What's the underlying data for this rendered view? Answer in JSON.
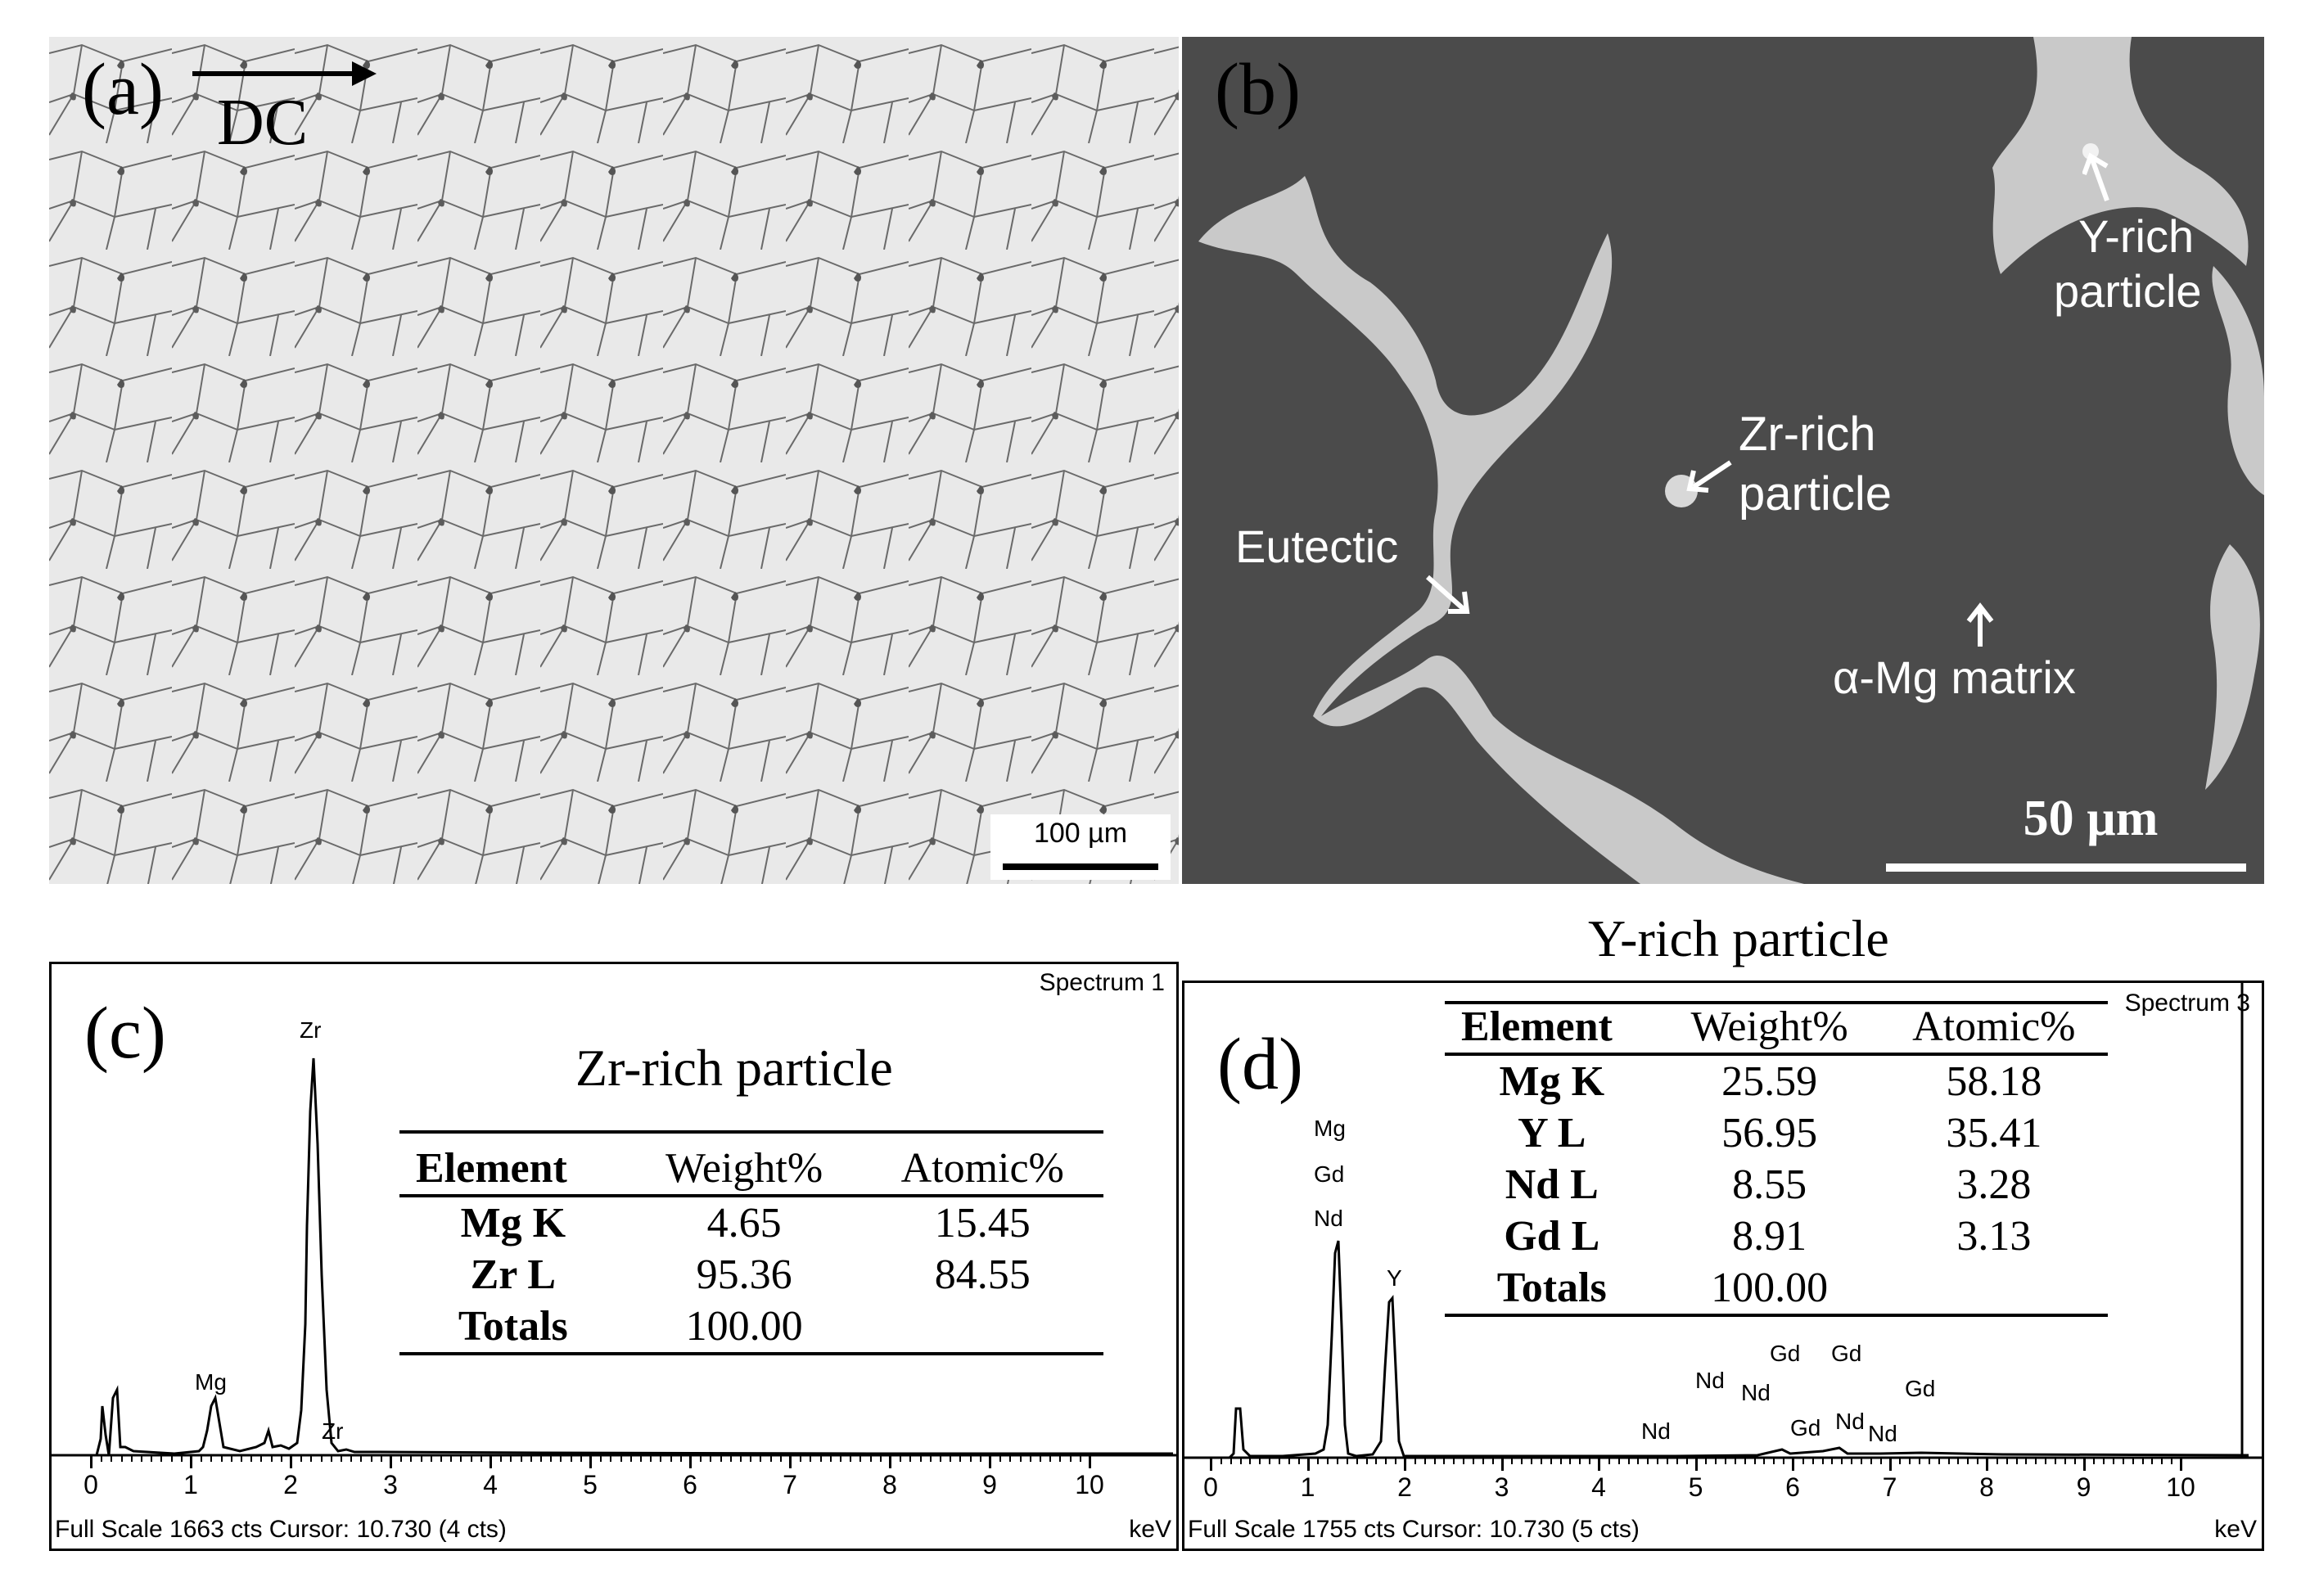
{
  "panel_a": {
    "label": "(a)",
    "direction_label": "DC",
    "scalebar_label": "100 µm"
  },
  "panel_b": {
    "label": "(b)",
    "annotations": {
      "y_rich_line1": "Y-rich",
      "y_rich_line2": "particle",
      "zr_rich_line1": "Zr-rich",
      "zr_rich_line2": "particle",
      "eutectic": "Eutectic",
      "matrix": "α-Mg matrix"
    },
    "scalebar_label": "50 µm"
  },
  "panel_c": {
    "label": "(c)",
    "spectrum_name": "Spectrum 1",
    "table_title": "Zr-rich particle",
    "table": {
      "headers": [
        "Element",
        "Weight%",
        "Atomic%"
      ],
      "rows": [
        [
          "Mg K",
          "4.65",
          "15.45"
        ],
        [
          "Zr L",
          "95.36",
          "84.55"
        ],
        [
          "Totals",
          "100.00",
          ""
        ]
      ]
    },
    "peak_labels": [
      "Zr",
      "Mg",
      "Zr"
    ],
    "axis_ticks": [
      "0",
      "1",
      "2",
      "3",
      "4",
      "5",
      "6",
      "7",
      "8",
      "9",
      "10"
    ],
    "axis_unit": "keV",
    "footer": "Full Scale 1663 cts Cursor: 10.730  (4 cts)"
  },
  "panel_d": {
    "label": "(d)",
    "spectrum_name": "Spectrum 3",
    "table_title": "Y-rich particle",
    "table": {
      "headers": [
        "Element",
        "Weight%",
        "Atomic%"
      ],
      "rows": [
        [
          "Mg K",
          "25.59",
          "58.18"
        ],
        [
          "Y L",
          "56.95",
          "35.41"
        ],
        [
          "Nd L",
          "8.55",
          "3.28"
        ],
        [
          "Gd L",
          "8.91",
          "3.13"
        ],
        [
          "Totals",
          "100.00",
          ""
        ]
      ]
    },
    "peak_labels": [
      "Mg",
      "Gd",
      "Nd",
      "Y",
      "Nd",
      "Nd",
      "Nd",
      "Gd",
      "Gd",
      "Gd",
      "Nd",
      "Gd",
      "Nd"
    ],
    "axis_ticks": [
      "0",
      "1",
      "2",
      "3",
      "4",
      "5",
      "6",
      "7",
      "8",
      "9",
      "10"
    ],
    "axis_unit": "keV",
    "footer": "Full Scale 1755 cts Cursor: 10.730  (5 cts)"
  }
}
